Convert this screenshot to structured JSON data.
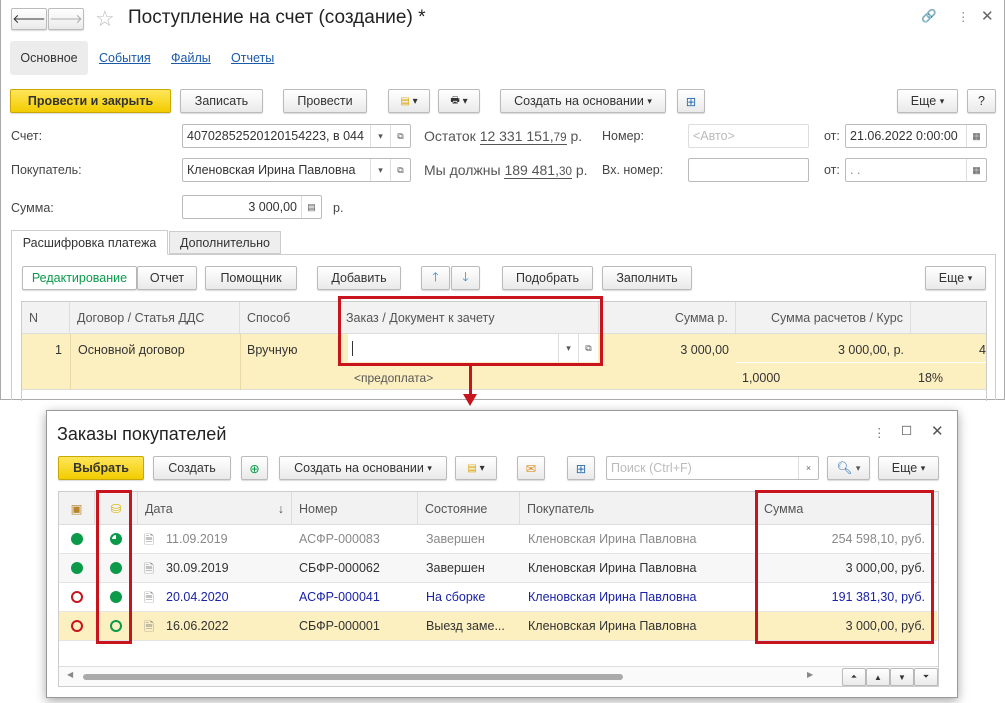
{
  "window": {
    "title": "Поступление на счет (создание) *"
  },
  "tabs": [
    "Основное",
    "События",
    "Файлы",
    "Отчеты"
  ],
  "toolbar": {
    "post_close": "Провести и закрыть",
    "save": "Записать",
    "post": "Провести",
    "create_based": "Создать на основании",
    "more": "Еще",
    "help": "?"
  },
  "form": {
    "account_label": "Счет:",
    "account_value": "40702852520120154223, в 044",
    "balance_label": "Остаток",
    "balance_value": "12 331 151,",
    "balance_cents": "79",
    "balance_cur": "р.",
    "number_label": "Номер:",
    "number_placeholder": "<Авто>",
    "from_label": "от:",
    "date_value": "21.06.2022  0:00:00",
    "buyer_label": "Покупатель:",
    "buyer_value": "Кленовская Ирина Павловна",
    "owe_label": "Мы должны",
    "owe_value": "189 481,",
    "owe_cents": "30",
    "owe_cur": "р.",
    "in_number_label": "Вх. номер:",
    "in_number_value": "",
    "from2_label": "от:",
    "in_date_value": " .  .",
    "sum_label": "Сумма:",
    "sum_value": "3 000,00",
    "sum_cur": "р."
  },
  "subtabs": [
    "Расшифровка платежа",
    "Дополнительно"
  ],
  "table_toolbar": {
    "edit": "Редактирование",
    "report": "Отчет",
    "assistant": "Помощник",
    "add": "Добавить",
    "pick": "Подобрать",
    "fill": "Заполнить",
    "more": "Еще"
  },
  "payment_table": {
    "columns": [
      "N",
      "Договор / Статья ДДС",
      "Способ",
      "Заказ / Документ к зачету",
      "Сумма р.",
      "Сумма расчетов / Курс"
    ],
    "row": {
      "n": "1",
      "contract": "Основной договор",
      "method": "Вручную",
      "order": "",
      "order_sub": "<предоплата>",
      "sum": "3 000,00",
      "settle_sum": "3 000,00, р.",
      "rate": "1,0000",
      "vat": "18%",
      "extra": "4"
    }
  },
  "popup": {
    "title": "Заказы покупателей",
    "toolbar": {
      "select": "Выбрать",
      "create": "Создать",
      "create_based": "Создать на основании",
      "search_placeholder": "Поиск (Ctrl+F)",
      "more": "Еще"
    },
    "columns": [
      "Дата",
      "Номер",
      "Состояние",
      "Покупатель",
      "Сумма"
    ],
    "rows": [
      {
        "date": "11.09.2019",
        "number": "АСФР-000083",
        "status": "Завершен",
        "buyer": "Кленовская Ирина Павловна",
        "sum": "254 598,10, руб.",
        "ship": "full",
        "pay": "partial",
        "style": "grey"
      },
      {
        "date": "30.09.2019",
        "number": "СБФР-000062",
        "status": "Завершен",
        "buyer": "Кленовская Ирина Павловна",
        "sum": "3 000,00, руб.",
        "ship": "full",
        "pay": "full",
        "style": "normal"
      },
      {
        "date": "20.04.2020",
        "number": "АСФР-000041",
        "status": "На сборке",
        "buyer": "Кленовская Ирина Павловна",
        "sum": "191 381,30, руб.",
        "ship": "none",
        "pay": "full",
        "style": "blue"
      },
      {
        "date": "16.06.2022",
        "number": "СБФР-000001",
        "status": "Выезд заме...",
        "buyer": "Кленовская Ирина Павловна",
        "sum": "3 000,00, руб.",
        "ship": "none",
        "pay": "none",
        "style": "selected"
      }
    ]
  },
  "colors": {
    "accent_yellow": "#f5d000",
    "highlight_red": "#c8141c",
    "green": "#0a9a4a",
    "link": "#1b5aa8",
    "selected_row": "#fcefc0"
  }
}
